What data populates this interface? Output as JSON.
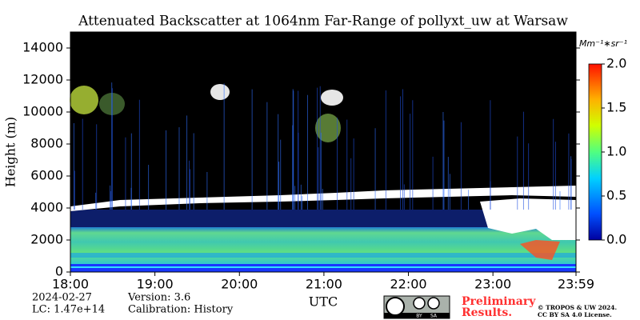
{
  "chart_data": {
    "type": "heatmap",
    "title": "Attenuated Backscatter at 1064nm Far-Range of pollyxt_uw at Warsaw",
    "ylabel": "Height (m)",
    "xlabel": "UTC",
    "xlim": [
      18,
      23.983
    ],
    "xticks": [
      {
        "value": 18,
        "label": "18:00"
      },
      {
        "value": 19,
        "label": "19:00"
      },
      {
        "value": 20,
        "label": "20:00"
      },
      {
        "value": 21,
        "label": "21:00"
      },
      {
        "value": 22,
        "label": "22:00"
      },
      {
        "value": 23,
        "label": "23:00"
      },
      {
        "value": 23.983,
        "label": "23:59"
      }
    ],
    "ylim": [
      0,
      15000
    ],
    "yticks": [
      0,
      2000,
      4000,
      6000,
      8000,
      10000,
      12000,
      14000
    ],
    "colorbar": {
      "label": "Mm⁻¹∗sr⁻¹",
      "lim": [
        0,
        2.0
      ],
      "ticks": [
        {
          "value": 0,
          "label": "0.0"
        },
        {
          "value": 0.5,
          "label": "0.5"
        },
        {
          "value": 1.0,
          "label": "1.0"
        },
        {
          "value": 1.5,
          "label": "1.5"
        },
        {
          "value": 2.0,
          "label": "2.0"
        }
      ]
    },
    "footer": {
      "date": "2024-02-27",
      "lc": "LC: 1.47e+14",
      "version": "Version: 3.6",
      "calibration": "Calibration: History",
      "preliminary": [
        "Preliminary",
        "Results."
      ],
      "copyright": [
        "© TROPOS & UW 2024.",
        "CC BY SA 4.0 License."
      ],
      "badge": [
        "BY",
        "SA"
      ]
    }
  }
}
